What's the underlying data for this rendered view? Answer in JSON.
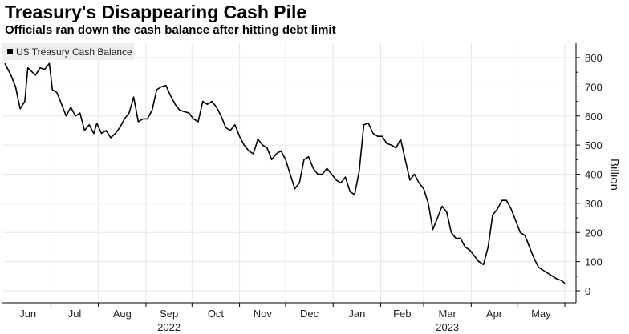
{
  "chart_data": {
    "type": "line",
    "title": "Treasury's Disappearing Cash Pile",
    "subtitle": "Officials ran down the cash balance after hitting debt limit",
    "ylabel": "Billion",
    "ylim": [
      0,
      800
    ],
    "yticks": [
      0,
      100,
      200,
      300,
      400,
      500,
      600,
      700,
      800
    ],
    "grid": true,
    "legend": "top-left",
    "color": "#000000",
    "months": [
      "Jun",
      "Jul",
      "Aug",
      "Sep",
      "Oct",
      "Nov",
      "Dec",
      "Jan",
      "Feb",
      "Mar",
      "Apr",
      "May"
    ],
    "year_labels": [
      {
        "label": "2022",
        "month_index": 3
      },
      {
        "label": "2023",
        "month_index": 9
      }
    ],
    "series": [
      {
        "name": "US Treasury Cash Balance",
        "x_start": "2022-06-01",
        "x": [
          "2022-06-01",
          "2022-06-05",
          "2022-06-08",
          "2022-06-11",
          "2022-06-14",
          "2022-06-16",
          "2022-06-19",
          "2022-06-21",
          "2022-06-24",
          "2022-06-27",
          "2022-06-30",
          "2022-07-02",
          "2022-07-05",
          "2022-07-08",
          "2022-07-11",
          "2022-07-14",
          "2022-07-17",
          "2022-07-20",
          "2022-07-23",
          "2022-07-26",
          "2022-07-29",
          "2022-07-31",
          "2022-08-03",
          "2022-08-06",
          "2022-08-09",
          "2022-08-12",
          "2022-08-15",
          "2022-08-18",
          "2022-08-21",
          "2022-08-24",
          "2022-08-27",
          "2022-08-30",
          "2022-09-02",
          "2022-09-05",
          "2022-09-08",
          "2022-09-11",
          "2022-09-14",
          "2022-09-17",
          "2022-09-20",
          "2022-09-23",
          "2022-09-26",
          "2022-09-29",
          "2022-10-02",
          "2022-10-05",
          "2022-10-08",
          "2022-10-11",
          "2022-10-14",
          "2022-10-17",
          "2022-10-20",
          "2022-10-23",
          "2022-10-26",
          "2022-10-29",
          "2022-11-01",
          "2022-11-04",
          "2022-11-07",
          "2022-11-10",
          "2022-11-13",
          "2022-11-16",
          "2022-11-19",
          "2022-11-22",
          "2022-11-25",
          "2022-11-28",
          "2022-12-01",
          "2022-12-04",
          "2022-12-07",
          "2022-12-10",
          "2022-12-13",
          "2022-12-16",
          "2022-12-19",
          "2022-12-22",
          "2022-12-25",
          "2022-12-28",
          "2022-12-31",
          "2023-01-03",
          "2023-01-06",
          "2023-01-09",
          "2023-01-12",
          "2023-01-15",
          "2023-01-18",
          "2023-01-21",
          "2023-01-24",
          "2023-01-27",
          "2023-01-30",
          "2023-02-02",
          "2023-02-05",
          "2023-02-08",
          "2023-02-11",
          "2023-02-14",
          "2023-02-17",
          "2023-02-20",
          "2023-02-23",
          "2023-02-26",
          "2023-03-01",
          "2023-03-04",
          "2023-03-07",
          "2023-03-10",
          "2023-03-13",
          "2023-03-16",
          "2023-03-19",
          "2023-03-22",
          "2023-03-25",
          "2023-03-28",
          "2023-03-31",
          "2023-04-03",
          "2023-04-06",
          "2023-04-09",
          "2023-04-12",
          "2023-04-15",
          "2023-04-18",
          "2023-04-21",
          "2023-04-24",
          "2023-04-27",
          "2023-04-30",
          "2023-05-03",
          "2023-05-06",
          "2023-05-09",
          "2023-05-12",
          "2023-05-15",
          "2023-05-18",
          "2023-05-21",
          "2023-05-24",
          "2023-05-27",
          "2023-05-30",
          "2023-06-01"
        ],
        "values": [
          780,
          740,
          700,
          625,
          650,
          765,
          750,
          740,
          765,
          760,
          780,
          690,
          680,
          640,
          600,
          630,
          600,
          610,
          550,
          570,
          540,
          575,
          540,
          550,
          525,
          540,
          560,
          590,
          610,
          665,
          580,
          590,
          590,
          620,
          690,
          700,
          705,
          670,
          640,
          620,
          615,
          610,
          590,
          580,
          650,
          640,
          650,
          630,
          600,
          560,
          550,
          570,
          530,
          500,
          480,
          470,
          520,
          500,
          490,
          450,
          470,
          480,
          450,
          400,
          350,
          370,
          450,
          460,
          420,
          400,
          400,
          420,
          400,
          380,
          370,
          390,
          340,
          330,
          410,
          570,
          575,
          540,
          530,
          530,
          505,
          500,
          490,
          520,
          450,
          380,
          400,
          370,
          350,
          300,
          210,
          250,
          290,
          270,
          200,
          180,
          180,
          150,
          140,
          120,
          100,
          90,
          150,
          260,
          280,
          310,
          310,
          280,
          240,
          200,
          190,
          150,
          110,
          80,
          70,
          60,
          50,
          40,
          35,
          25
        ]
      }
    ]
  }
}
